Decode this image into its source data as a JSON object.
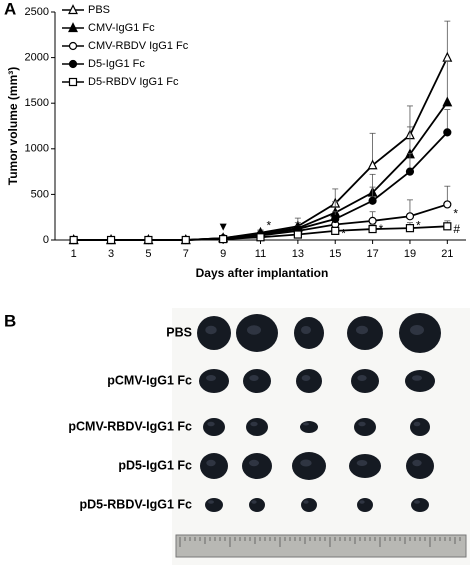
{
  "chart_data": {
    "type": "line",
    "panel_label": "A",
    "x": [
      1,
      3,
      5,
      7,
      9,
      11,
      13,
      15,
      17,
      19,
      21
    ],
    "xlim": [
      0,
      22
    ],
    "xticks": [
      1,
      3,
      5,
      7,
      9,
      11,
      13,
      15,
      17,
      19,
      21
    ],
    "ylim": [
      0,
      2500
    ],
    "yticks": [
      0,
      500,
      1000,
      1500,
      2000,
      2500
    ],
    "xlabel": "Days after implantation",
    "ylabel": "Tumor volume (mm³)",
    "legend": "top-left",
    "series": [
      {
        "name": "PBS",
        "color": "#000000",
        "marker": "triangle",
        "filled": false,
        "values": [
          0,
          0,
          0,
          0,
          20,
          80,
          150,
          400,
          820,
          1150,
          2000
        ],
        "errors": [
          null,
          null,
          null,
          null,
          10,
          30,
          90,
          160,
          350,
          320,
          400
        ]
      },
      {
        "name": "CMV-IgG1 Fc",
        "color": "#000000",
        "marker": "triangle",
        "filled": true,
        "values": [
          0,
          0,
          0,
          0,
          20,
          70,
          130,
          300,
          520,
          940,
          1510
        ],
        "errors": [
          null,
          null,
          null,
          null,
          10,
          30,
          60,
          120,
          200,
          300,
          450
        ]
      },
      {
        "name": "CMV-RBDV IgG1 Fc",
        "color": "#000000",
        "marker": "circle",
        "filled": false,
        "values": [
          0,
          0,
          0,
          0,
          15,
          50,
          100,
          170,
          210,
          260,
          390
        ],
        "errors": [
          null,
          null,
          null,
          null,
          10,
          20,
          40,
          80,
          100,
          180,
          200
        ]
      },
      {
        "name": "D5-IgG1 Fc",
        "color": "#000000",
        "marker": "circle",
        "filled": true,
        "values": [
          0,
          0,
          0,
          0,
          20,
          60,
          120,
          230,
          430,
          750,
          1180
        ],
        "errors": [
          null,
          null,
          null,
          null,
          10,
          20,
          40,
          80,
          150,
          200,
          250
        ]
      },
      {
        "name": "D5-RBDV IgG1 Fc",
        "color": "#000000",
        "marker": "square",
        "filled": false,
        "values": [
          0,
          0,
          0,
          0,
          10,
          30,
          60,
          100,
          120,
          130,
          150
        ],
        "errors": [
          null,
          null,
          null,
          null,
          5,
          10,
          20,
          40,
          50,
          60,
          60
        ]
      }
    ],
    "annotations": [
      {
        "text": "▼",
        "x": 9,
        "y": 140
      },
      {
        "text": "*",
        "x": 11,
        "y": 150
      },
      {
        "text": "*",
        "x": 15,
        "y": 60
      },
      {
        "text": "*",
        "x": 17,
        "y": 110
      },
      {
        "text": "*",
        "x": 19,
        "y": 150
      },
      {
        "text": "*",
        "x": 21,
        "y": 280
      },
      {
        "text": "#",
        "x": 21,
        "y": 110
      }
    ]
  },
  "photo": {
    "panel_label": "B",
    "rows": [
      "PBS",
      "pCMV-IgG1 Fc",
      "pCMV-RBDV-IgG1 Fc",
      "pD5-IgG1 Fc",
      "pD5-RBDV-IgG1 Fc"
    ]
  }
}
